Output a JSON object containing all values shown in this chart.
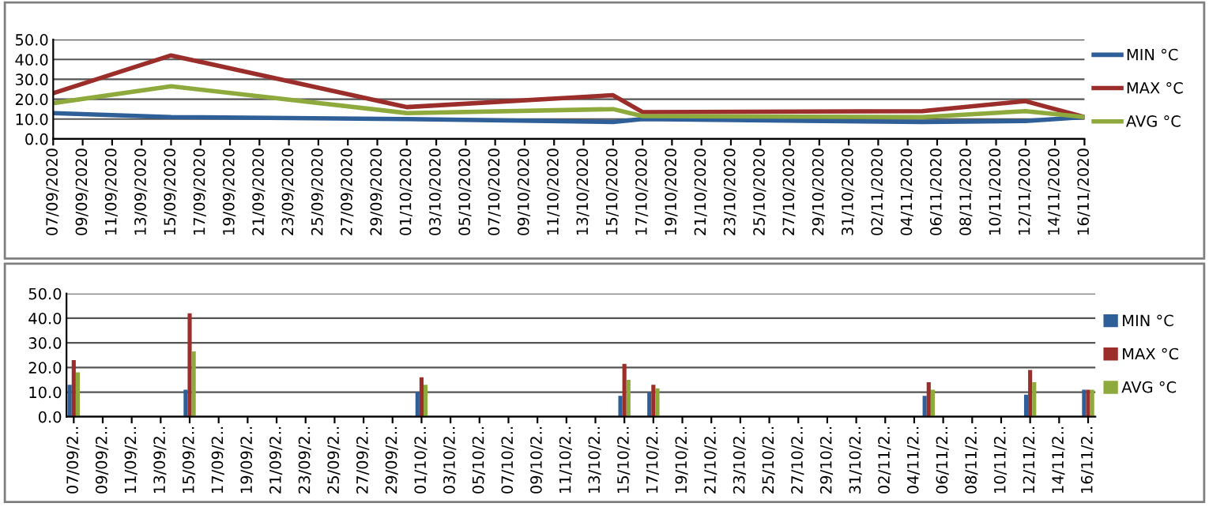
{
  "chart_data": [
    {
      "type": "line",
      "x": [
        "2020-09-07",
        "2020-09-15",
        "2020-10-01",
        "2020-10-15",
        "2020-10-17",
        "2020-11-05",
        "2020-11-12",
        "2020-11-16"
      ],
      "series": [
        {
          "name": "MIN °C",
          "color": "#2f5f98",
          "values": [
            13,
            11,
            10,
            8.5,
            10,
            8.5,
            9,
            11
          ]
        },
        {
          "name": "MAX °C",
          "color": "#9b2d2a",
          "values": [
            23,
            42,
            16,
            22,
            13.5,
            14,
            19,
            11
          ]
        },
        {
          "name": "AVG °C",
          "color": "#8faa3c",
          "values": [
            18,
            26.5,
            13,
            15,
            11.5,
            11,
            14,
            11
          ]
        }
      ],
      "xlim": [
        "2020-09-07",
        "2020-11-16"
      ],
      "xticks": [
        {
          "value": "2020-09-07",
          "label": "07/09/2020"
        },
        {
          "value": "2020-09-09",
          "label": "09/09/2020"
        },
        {
          "value": "2020-09-11",
          "label": "11/09/2020"
        },
        {
          "value": "2020-09-13",
          "label": "13/09/2020"
        },
        {
          "value": "2020-09-15",
          "label": "15/09/2020"
        },
        {
          "value": "2020-09-17",
          "label": "17/09/2020"
        },
        {
          "value": "2020-09-19",
          "label": "19/09/2020"
        },
        {
          "value": "2020-09-21",
          "label": "21/09/2020"
        },
        {
          "value": "2020-09-23",
          "label": "23/09/2020"
        },
        {
          "value": "2020-09-25",
          "label": "25/09/2020"
        },
        {
          "value": "2020-09-27",
          "label": "27/09/2020"
        },
        {
          "value": "2020-09-29",
          "label": "29/09/2020"
        },
        {
          "value": "2020-10-01",
          "label": "01/10/2020"
        },
        {
          "value": "2020-10-03",
          "label": "03/10/2020"
        },
        {
          "value": "2020-10-05",
          "label": "05/10/2020"
        },
        {
          "value": "2020-10-07",
          "label": "07/10/2020"
        },
        {
          "value": "2020-10-09",
          "label": "09/10/2020"
        },
        {
          "value": "2020-10-11",
          "label": "11/10/2020"
        },
        {
          "value": "2020-10-13",
          "label": "13/10/2020"
        },
        {
          "value": "2020-10-15",
          "label": "15/10/2020"
        },
        {
          "value": "2020-10-17",
          "label": "17/10/2020"
        },
        {
          "value": "2020-10-19",
          "label": "19/10/2020"
        },
        {
          "value": "2020-10-21",
          "label": "21/10/2020"
        },
        {
          "value": "2020-10-23",
          "label": "23/10/2020"
        },
        {
          "value": "2020-10-25",
          "label": "25/10/2020"
        },
        {
          "value": "2020-10-27",
          "label": "27/10/2020"
        },
        {
          "value": "2020-10-29",
          "label": "29/10/2020"
        },
        {
          "value": "2020-10-31",
          "label": "31/10/2020"
        },
        {
          "value": "2020-11-02",
          "label": "02/11/2020"
        },
        {
          "value": "2020-11-04",
          "label": "04/11/2020"
        },
        {
          "value": "2020-11-06",
          "label": "06/11/2020"
        },
        {
          "value": "2020-11-08",
          "label": "08/11/2020"
        },
        {
          "value": "2020-11-10",
          "label": "10/11/2020"
        },
        {
          "value": "2020-11-12",
          "label": "12/11/2020"
        },
        {
          "value": "2020-11-14",
          "label": "14/11/2020"
        },
        {
          "value": "2020-11-16",
          "label": "16/11/2020"
        }
      ],
      "ylim": [
        0,
        50
      ],
      "yticks": [
        {
          "value": 0,
          "label": "0.0"
        },
        {
          "value": 10,
          "label": "10.0"
        },
        {
          "value": 20,
          "label": "20.0"
        },
        {
          "value": 30,
          "label": "30.0"
        },
        {
          "value": 40,
          "label": "40.0"
        },
        {
          "value": 50,
          "label": "50.0"
        }
      ],
      "grid": "y",
      "legend": "right"
    },
    {
      "type": "bar",
      "x": [
        "2020-09-07",
        "2020-09-15",
        "2020-10-01",
        "2020-10-15",
        "2020-10-17",
        "2020-11-05",
        "2020-11-12",
        "2020-11-16"
      ],
      "series": [
        {
          "name": "MIN °C",
          "color": "#2f5f98",
          "values": [
            13,
            11,
            10,
            8.5,
            10,
            8.5,
            9,
            11
          ]
        },
        {
          "name": "MAX °C",
          "color": "#9b2d2a",
          "values": [
            23,
            42,
            16,
            21.5,
            13,
            14,
            19,
            11
          ]
        },
        {
          "name": "AVG °C",
          "color": "#8faa3c",
          "values": [
            18,
            26.5,
            13,
            15,
            11.5,
            11,
            14,
            11
          ]
        }
      ],
      "xlim": [
        "2020-09-06T12:00",
        "2020-11-16T12:00"
      ],
      "xticks": [
        {
          "value": "2020-09-07",
          "label": "07/09/2.."
        },
        {
          "value": "2020-09-09",
          "label": "09/09/2.."
        },
        {
          "value": "2020-09-11",
          "label": "11/09/2.."
        },
        {
          "value": "2020-09-13",
          "label": "13/09/2.."
        },
        {
          "value": "2020-09-15",
          "label": "15/09/2.."
        },
        {
          "value": "2020-09-17",
          "label": "17/09/2.."
        },
        {
          "value": "2020-09-19",
          "label": "19/09/2.."
        },
        {
          "value": "2020-09-21",
          "label": "21/09/2.."
        },
        {
          "value": "2020-09-23",
          "label": "23/09/2.."
        },
        {
          "value": "2020-09-25",
          "label": "25/09/2.."
        },
        {
          "value": "2020-09-27",
          "label": "27/09/2.."
        },
        {
          "value": "2020-09-29",
          "label": "29/09/2.."
        },
        {
          "value": "2020-10-01",
          "label": "01/10/2.."
        },
        {
          "value": "2020-10-03",
          "label": "03/10/2.."
        },
        {
          "value": "2020-10-05",
          "label": "05/10/2.."
        },
        {
          "value": "2020-10-07",
          "label": "07/10/2.."
        },
        {
          "value": "2020-10-09",
          "label": "09/10/2.."
        },
        {
          "value": "2020-10-11",
          "label": "11/10/2.."
        },
        {
          "value": "2020-10-13",
          "label": "13/10/2.."
        },
        {
          "value": "2020-10-15",
          "label": "15/10/2.."
        },
        {
          "value": "2020-10-17",
          "label": "17/10/2.."
        },
        {
          "value": "2020-10-19",
          "label": "19/10/2.."
        },
        {
          "value": "2020-10-21",
          "label": "21/10/2.."
        },
        {
          "value": "2020-10-23",
          "label": "23/10/2.."
        },
        {
          "value": "2020-10-25",
          "label": "25/10/2.."
        },
        {
          "value": "2020-10-27",
          "label": "27/10/2.."
        },
        {
          "value": "2020-10-29",
          "label": "29/10/2.."
        },
        {
          "value": "2020-10-31",
          "label": "31/10/2.."
        },
        {
          "value": "2020-11-02",
          "label": "02/11/2.."
        },
        {
          "value": "2020-11-04",
          "label": "04/11/2.."
        },
        {
          "value": "2020-11-06",
          "label": "06/11/2.."
        },
        {
          "value": "2020-11-08",
          "label": "08/11/2.."
        },
        {
          "value": "2020-11-10",
          "label": "10/11/2.."
        },
        {
          "value": "2020-11-12",
          "label": "12/11/2.."
        },
        {
          "value": "2020-11-14",
          "label": "14/11/2.."
        },
        {
          "value": "2020-11-16",
          "label": "16/11/2.."
        }
      ],
      "ylim": [
        0,
        50
      ],
      "yticks": [
        {
          "value": 0,
          "label": "0.0"
        },
        {
          "value": 10,
          "label": "10.0"
        },
        {
          "value": 20,
          "label": "20.0"
        },
        {
          "value": 30,
          "label": "30.0"
        },
        {
          "value": 40,
          "label": "40.0"
        },
        {
          "value": 50,
          "label": "50.0"
        }
      ],
      "grid": "y",
      "legend": "right"
    }
  ]
}
